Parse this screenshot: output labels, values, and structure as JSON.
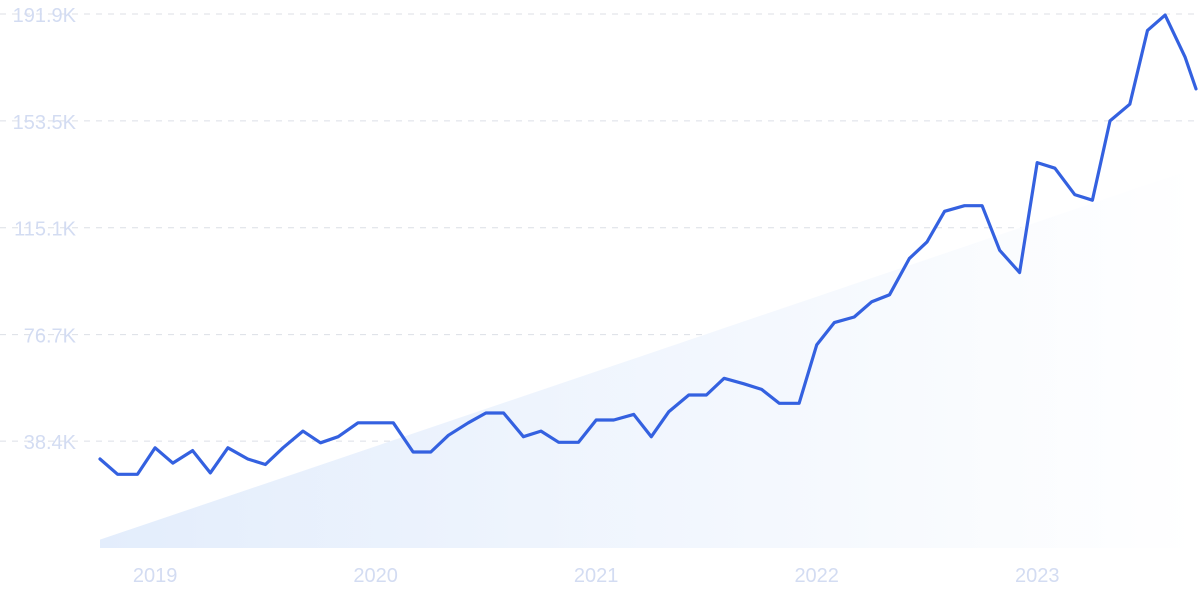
{
  "colors": {
    "line": "#3461e0",
    "tick_label": "#d3dcf2",
    "grid": "#dcdfe6",
    "trend_fill_start": "#e3edfc",
    "trend_fill_end": "#ffffff"
  },
  "chart_data": {
    "type": "line",
    "title": "",
    "xlabel": "",
    "ylabel": "",
    "x_tick_labels": [
      "2019",
      "2020",
      "2021",
      "2022",
      "2023"
    ],
    "x_tick_values": [
      2019.0,
      2020.0,
      2021.0,
      2022.0,
      2023.0
    ],
    "y_tick_labels": [
      "38.4K",
      "76.7K",
      "115.1K",
      "153.5K",
      "191.9K"
    ],
    "y_tick_values": [
      38400,
      76700,
      115100,
      153500,
      191900
    ],
    "xlim": [
      2018.75,
      2023.72
    ],
    "ylim": [
      0,
      191900
    ],
    "grid": true,
    "legend": "none",
    "series": [
      {
        "x": [
          2018.75,
          2018.83,
          2018.92,
          2019.0,
          2019.08,
          2019.17,
          2019.25,
          2019.33,
          2019.42,
          2019.5,
          2019.58,
          2019.67,
          2019.75,
          2019.83,
          2019.92,
          2020.0,
          2020.08,
          2020.17,
          2020.25,
          2020.33,
          2020.42,
          2020.5,
          2020.58,
          2020.67,
          2020.75,
          2020.83,
          2020.92,
          2021.0,
          2021.08,
          2021.17,
          2021.25,
          2021.33,
          2021.42,
          2021.5,
          2021.58,
          2021.67,
          2021.75,
          2021.83,
          2021.92,
          2022.0,
          2022.08,
          2022.17,
          2022.25,
          2022.33,
          2022.42,
          2022.5,
          2022.58,
          2022.67,
          2022.75,
          2022.83,
          2022.92,
          2023.0,
          2023.08,
          2023.17,
          2023.25,
          2023.33,
          2023.42,
          2023.5,
          2023.58,
          2023.67,
          2023.72
        ],
        "values": [
          32000,
          26500,
          26500,
          36000,
          30500,
          35000,
          27000,
          36000,
          32000,
          30000,
          36000,
          42000,
          37800,
          40000,
          45000,
          45000,
          45000,
          34500,
          34500,
          40500,
          45000,
          48500,
          48500,
          40000,
          42000,
          38000,
          38000,
          46000,
          46000,
          48000,
          40000,
          49000,
          55000,
          55000,
          61000,
          59000,
          57000,
          52000,
          52000,
          73000,
          81000,
          83000,
          88500,
          91000,
          104000,
          110000,
          121000,
          123000,
          123000,
          107000,
          99000,
          138500,
          136500,
          127000,
          125000,
          153500,
          159500,
          186000,
          191500,
          176500,
          165000
        ]
      }
    ],
    "trend": {
      "start": [
        2018.75,
        3000
      ],
      "end": [
        2023.72,
        136500
      ]
    }
  }
}
